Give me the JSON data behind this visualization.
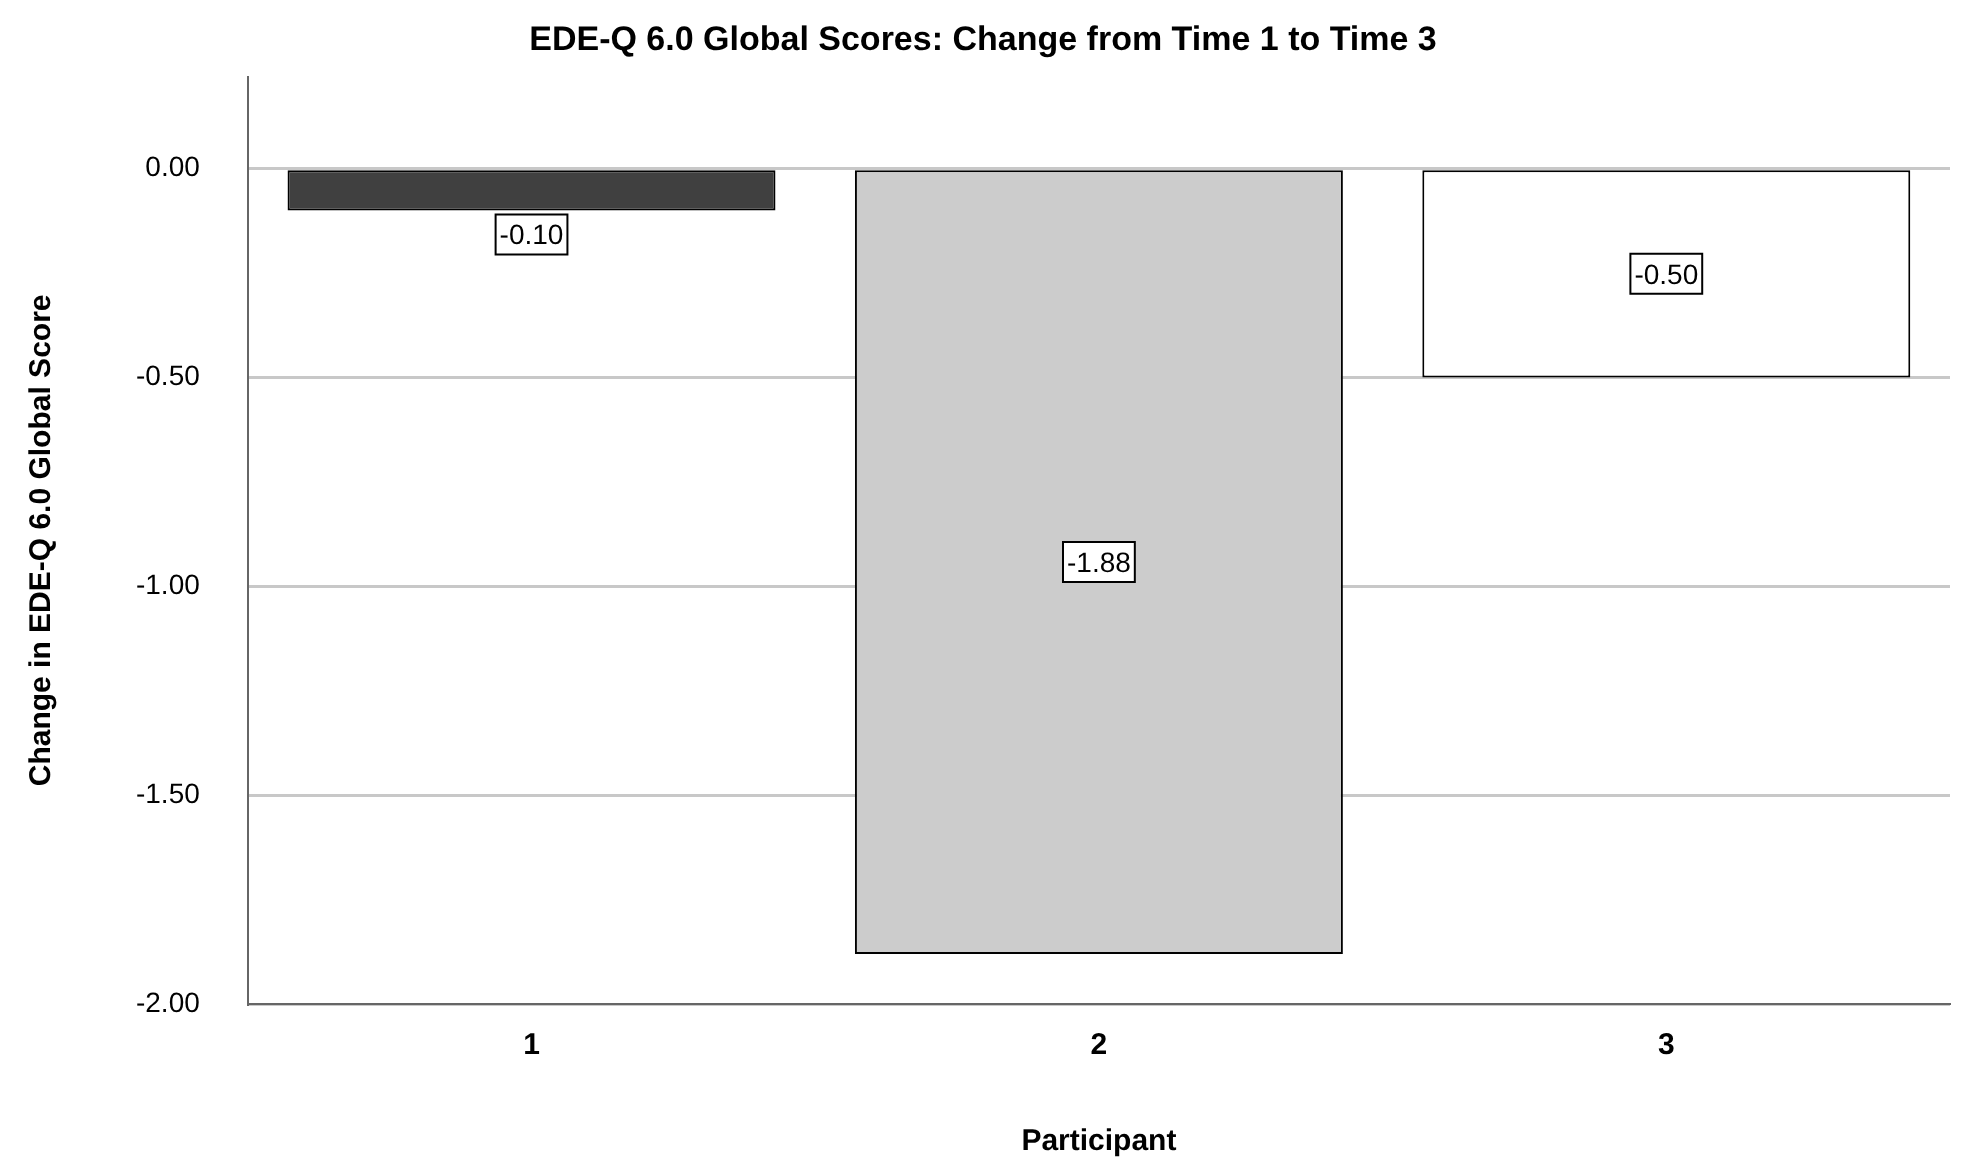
{
  "chart_data": {
    "type": "bar",
    "title": "EDE-Q 6.0 Global Scores: Change from Time 1 to Time 3",
    "xlabel": "Participant",
    "ylabel": "Change in EDE-Q 6.0 Global Score",
    "categories": [
      "1",
      "2",
      "3"
    ],
    "values": [
      -0.1,
      -1.88,
      -0.5
    ],
    "colors": [
      "#404040",
      "#cccccc",
      "#ffffff"
    ],
    "ylim": [
      -2.0,
      0.22
    ],
    "yticks": [
      {
        "value": 0,
        "label": "0.00"
      },
      {
        "value": -0.5,
        "label": "-0.50"
      },
      {
        "value": -1,
        "label": "-1.00"
      },
      {
        "value": -1.5,
        "label": "-1.50"
      },
      {
        "value": -2,
        "label": "-2.00"
      }
    ],
    "value_labels": [
      "-0.10",
      "-1.88",
      "-0.50"
    ],
    "grid": "y",
    "legend": false
  }
}
